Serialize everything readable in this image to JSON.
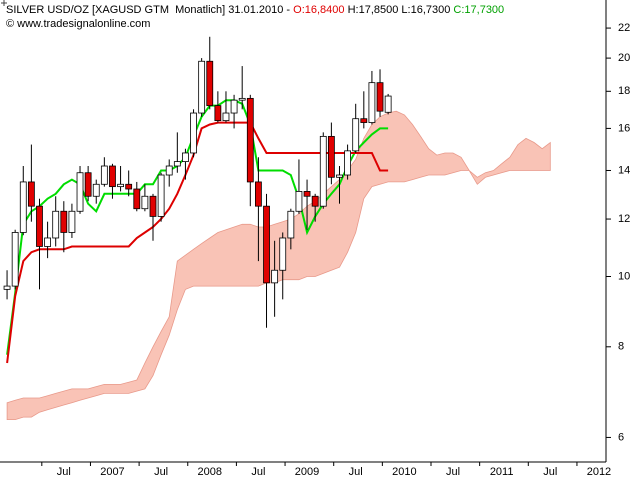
{
  "chart_data": {
    "type": "candlestick",
    "title": "SILVER USD/OZ [XAGUSD GTM  Monatlich]",
    "date": "31.01.2010 -",
    "open_label": "O:16,8400",
    "high_label": "H:17,8500",
    "low_label": "L:16,7300",
    "close_label": "C:17,7300",
    "source": "© www.tradesignalonline.com",
    "log_scale": true,
    "ylim": [
      5.55,
      24.05
    ],
    "yticks": [
      6,
      8,
      10,
      12,
      14,
      16,
      18,
      20,
      22
    ],
    "categories": [
      null,
      null,
      null,
      null,
      null,
      null,
      null,
      "Jul",
      null,
      null,
      null,
      null,
      null,
      "2007",
      null,
      null,
      null,
      null,
      null,
      "Jul",
      null,
      null,
      null,
      null,
      null,
      "2008",
      null,
      null,
      null,
      null,
      null,
      "Jul",
      null,
      null,
      null,
      null,
      null,
      "2009",
      null,
      null,
      null,
      null,
      null,
      "Jul",
      null,
      null,
      null,
      null,
      null,
      "2010",
      null,
      null,
      null,
      null,
      null,
      "Jul",
      null,
      null,
      null,
      null,
      null,
      "2011",
      null,
      null,
      null,
      null,
      null,
      "Jul",
      null,
      null,
      null,
      null,
      null,
      "2012"
    ],
    "candles": {
      "up_color": "#ffffff",
      "down_color": "#e00000",
      "open": [
        9.6,
        9.7,
        11.5,
        13.5,
        12.5,
        11.0,
        11.3,
        12.3,
        11.5,
        12.3,
        13.9,
        12.9,
        13.4,
        14.2,
        13.3,
        13.4,
        13.2,
        12.4,
        12.9,
        12.1,
        13.8,
        14.2,
        14.4,
        14.8,
        16.8,
        19.8,
        17.2,
        16.4,
        16.8,
        17.5,
        17.6,
        13.5,
        12.5,
        9.8,
        10.2,
        11.3,
        12.3,
        13.1,
        12.9,
        12.5,
        15.6,
        13.7,
        13.8,
        14.9,
        16.5,
        16.3,
        18.5,
        16.84,
        null,
        null,
        null,
        null,
        null,
        null,
        null,
        null,
        null,
        null,
        null,
        null,
        null,
        null,
        null,
        null,
        null,
        null,
        null,
        null,
        null,
        null,
        null,
        null,
        null,
        null
      ],
      "high": [
        10.2,
        11.6,
        14.2,
        15.2,
        12.8,
        11.9,
        12.9,
        12.7,
        12.6,
        14.2,
        14.2,
        13.6,
        14.6,
        14.3,
        14.2,
        14.0,
        13.5,
        13.4,
        13.0,
        13.9,
        14.5,
        15.8,
        15.0,
        17.0,
        20.0,
        21.4,
        18.0,
        18.0,
        17.8,
        19.5,
        17.8,
        14.6,
        13.0,
        11.2,
        11.5,
        12.4,
        14.5,
        13.6,
        13.0,
        15.8,
        16.3,
        14.2,
        15.2,
        17.3,
        18.0,
        19.2,
        19.3,
        17.85,
        null,
        null,
        null,
        null,
        null,
        null,
        null,
        null,
        null,
        null,
        null,
        null,
        null,
        null,
        null,
        null,
        null,
        null,
        null,
        null,
        null,
        null,
        null,
        null,
        null,
        null
      ],
      "low": [
        9.3,
        9.6,
        11.4,
        11.9,
        9.6,
        10.6,
        11.0,
        10.8,
        11.3,
        12.2,
        12.7,
        12.6,
        13.3,
        12.8,
        13.1,
        12.9,
        12.3,
        12.3,
        11.2,
        11.9,
        13.3,
        13.9,
        13.6,
        14.6,
        16.6,
        17.0,
        16.3,
        16.3,
        16.0,
        17.0,
        12.5,
        10.5,
        8.5,
        8.8,
        9.3,
        10.9,
        12.2,
        11.6,
        11.9,
        12.4,
        13.4,
        12.6,
        13.6,
        14.8,
        16.0,
        16.2,
        16.6,
        16.73,
        null,
        null,
        null,
        null,
        null,
        null,
        null,
        null,
        null,
        null,
        null,
        null,
        null,
        null,
        null,
        null,
        null,
        null,
        null,
        null,
        null,
        null,
        null,
        null,
        null,
        null
      ],
      "close": [
        9.7,
        11.5,
        13.5,
        12.5,
        11.0,
        11.3,
        12.3,
        11.5,
        12.3,
        13.9,
        12.9,
        13.4,
        14.2,
        13.3,
        13.4,
        13.2,
        12.4,
        12.9,
        12.1,
        13.8,
        14.2,
        14.4,
        14.8,
        16.8,
        19.8,
        17.2,
        16.4,
        16.8,
        17.5,
        17.6,
        13.5,
        12.5,
        9.8,
        10.2,
        11.3,
        12.3,
        13.1,
        12.9,
        12.5,
        15.6,
        13.7,
        13.8,
        14.9,
        16.5,
        16.3,
        18.5,
        16.9,
        17.73,
        null,
        null,
        null,
        null,
        null,
        null,
        null,
        null,
        null,
        null,
        null,
        null,
        null,
        null,
        null,
        null,
        null,
        null,
        null,
        null,
        null,
        null,
        null,
        null,
        null,
        null
      ]
    },
    "lines": [
      {
        "color": "#00dd00",
        "values": [
          7.8,
          9.5,
          11.8,
          12.3,
          12.5,
          12.8,
          13.0,
          13.4,
          13.6,
          13.4,
          12.6,
          12.3,
          13.0,
          13.0,
          13.0,
          13.0,
          13.0,
          13.4,
          13.4,
          14.0,
          14.0,
          14.2,
          14.6,
          15.6,
          16.6,
          17.2,
          17.2,
          17.5,
          17.5,
          17.3,
          16.2,
          14.0,
          14.0,
          14.0,
          14.0,
          13.8,
          12.8,
          11.5,
          12.1,
          12.6,
          13.0,
          13.4,
          14.2,
          14.9,
          15.3,
          15.7,
          16.0,
          16.0,
          null,
          null,
          null,
          null,
          null,
          null,
          null,
          null,
          null,
          null,
          null,
          null,
          null,
          null,
          null,
          null,
          null,
          null,
          null,
          null,
          null,
          null,
          null,
          null,
          null,
          null
        ]
      },
      {
        "color": "#dd0000",
        "values": [
          7.6,
          9.4,
          10.5,
          10.8,
          10.9,
          10.9,
          10.9,
          10.9,
          11.0,
          11.0,
          11.0,
          11.0,
          11.0,
          11.0,
          11.0,
          11.0,
          11.3,
          11.5,
          11.7,
          12.0,
          12.4,
          13.0,
          13.8,
          14.7,
          16.0,
          16.2,
          16.3,
          16.3,
          16.3,
          16.3,
          16.3,
          15.5,
          14.8,
          14.8,
          14.8,
          14.8,
          14.8,
          14.8,
          14.8,
          14.8,
          14.8,
          14.8,
          14.8,
          14.8,
          14.8,
          14.8,
          14.0,
          14.0,
          null,
          null,
          null,
          null,
          null,
          null,
          null,
          null,
          null,
          null,
          null,
          null,
          null,
          null,
          null,
          null,
          null,
          null,
          null,
          null,
          null,
          null,
          null,
          null,
          null,
          null
        ]
      }
    ],
    "cloud": {
      "color": "#f9c3b6",
      "edge_color": "#e8998a",
      "upper": [
        6.7,
        6.75,
        6.8,
        6.8,
        6.8,
        6.85,
        6.9,
        6.95,
        7.0,
        7.0,
        7.0,
        7.05,
        7.1,
        7.1,
        7.1,
        7.15,
        7.2,
        7.6,
        8.0,
        8.4,
        8.8,
        10.5,
        10.7,
        10.9,
        11.1,
        11.3,
        11.5,
        11.6,
        11.7,
        11.8,
        11.8,
        11.7,
        11.7,
        11.8,
        11.9,
        12.0,
        12.2,
        12.5,
        12.7,
        13.0,
        13.3,
        13.6,
        14.0,
        14.5,
        15.5,
        16.2,
        16.6,
        16.8,
        16.9,
        16.7,
        16.2,
        15.6,
        15.0,
        14.7,
        14.8,
        14.8,
        14.6,
        14.0,
        13.7,
        13.9,
        14.0,
        14.3,
        14.6,
        15.2,
        15.5,
        15.3,
        15.0,
        15.3,
        null,
        null,
        null,
        null,
        null,
        null
      ],
      "lower": [
        6.35,
        6.35,
        6.4,
        6.4,
        6.5,
        6.55,
        6.6,
        6.65,
        6.7,
        6.75,
        6.8,
        6.85,
        6.9,
        6.9,
        6.9,
        6.9,
        6.95,
        7.0,
        7.3,
        7.8,
        8.3,
        9.0,
        9.6,
        9.7,
        9.7,
        9.7,
        9.7,
        9.7,
        9.7,
        9.7,
        9.7,
        9.7,
        9.8,
        9.8,
        9.9,
        9.9,
        9.9,
        10.0,
        10.0,
        10.1,
        10.2,
        10.3,
        10.8,
        11.5,
        12.8,
        13.3,
        13.4,
        13.5,
        13.5,
        13.5,
        13.6,
        13.7,
        13.8,
        13.8,
        13.8,
        13.9,
        14.0,
        14.0,
        13.4,
        13.7,
        13.8,
        13.9,
        14.0,
        14.0,
        14.0,
        14.0,
        14.0,
        14.0,
        null,
        null,
        null,
        null,
        null,
        null
      ]
    }
  }
}
